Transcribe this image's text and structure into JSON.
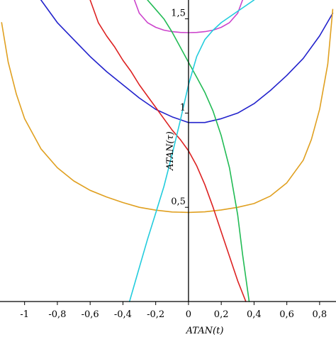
{
  "chart_data": {
    "type": "line",
    "title": "",
    "xlabel": "ATAN(t)",
    "ylabel": "ATAN(τ)",
    "xlim": [
      -1.15,
      0.9
    ],
    "ylim": [
      0.0,
      1.6
    ],
    "grid": false,
    "legend": "none",
    "x_ticks": [
      {
        "value": -1,
        "label": "-1"
      },
      {
        "value": -0.8,
        "label": "-0,8"
      },
      {
        "value": -0.6,
        "label": "-0,6"
      },
      {
        "value": -0.4,
        "label": "-0,4"
      },
      {
        "value": -0.2,
        "label": "-0,2"
      },
      {
        "value": 0,
        "label": "0"
      },
      {
        "value": 0.2,
        "label": "0,2"
      },
      {
        "value": 0.4,
        "label": "0,4"
      },
      {
        "value": 0.6,
        "label": "0,6"
      },
      {
        "value": 0.8,
        "label": "0,8"
      }
    ],
    "y_ticks": [
      {
        "value": 0.5,
        "label": "0,5"
      },
      {
        "value": 1,
        "label": "1"
      },
      {
        "value": 1.5,
        "label": "1,5"
      }
    ],
    "series": [
      {
        "color": "#cc44cc",
        "x": [
          -0.33,
          -0.3,
          -0.25,
          -0.2,
          -0.15,
          -0.1,
          -0.05,
          0,
          0.05,
          0.1,
          0.15,
          0.2,
          0.25,
          0.3,
          0.33
        ],
        "y": [
          1.6,
          1.53,
          1.48,
          1.455,
          1.44,
          1.432,
          1.428,
          1.427,
          1.428,
          1.432,
          1.44,
          1.455,
          1.48,
          1.53,
          1.6
        ]
      },
      {
        "color": "#2222cc",
        "x": [
          -0.9,
          -0.8,
          -0.7,
          -0.6,
          -0.5,
          -0.4,
          -0.3,
          -0.2,
          -0.1,
          0,
          0.1,
          0.2,
          0.3,
          0.4,
          0.5,
          0.6,
          0.7,
          0.8,
          0.88
        ],
        "y": [
          1.6,
          1.48,
          1.39,
          1.3,
          1.22,
          1.15,
          1.08,
          1.02,
          0.98,
          0.95,
          0.95,
          0.97,
          1.0,
          1.05,
          1.12,
          1.2,
          1.29,
          1.41,
          1.53
        ]
      },
      {
        "color": "#e0a020",
        "x": [
          -1.14,
          -1.1,
          -1.05,
          -1.0,
          -0.9,
          -0.8,
          -0.7,
          -0.6,
          -0.5,
          -0.4,
          -0.3,
          -0.2,
          -0.1,
          0,
          0.1,
          0.2,
          0.3,
          0.4,
          0.5,
          0.6,
          0.7,
          0.75,
          0.8,
          0.85,
          0.88
        ],
        "y": [
          1.48,
          1.27,
          1.1,
          0.97,
          0.81,
          0.71,
          0.64,
          0.59,
          0.555,
          0.525,
          0.5,
          0.485,
          0.475,
          0.473,
          0.476,
          0.486,
          0.5,
          0.52,
          0.56,
          0.63,
          0.75,
          0.86,
          1.02,
          1.26,
          1.55
        ]
      },
      {
        "color": "#dd2222",
        "x": [
          -0.6,
          -0.55,
          -0.5,
          -0.45,
          -0.4,
          -0.35,
          -0.3,
          -0.25,
          -0.2,
          -0.15,
          -0.1,
          -0.05,
          0,
          0.05,
          0.1,
          0.15,
          0.2,
          0.25,
          0.3,
          0.35
        ],
        "y": [
          1.6,
          1.48,
          1.41,
          1.35,
          1.28,
          1.22,
          1.15,
          1.09,
          1.03,
          0.97,
          0.91,
          0.86,
          0.8,
          0.72,
          0.62,
          0.5,
          0.37,
          0.24,
          0.11,
          0.0
        ]
      },
      {
        "color": "#22bb55",
        "x": [
          -0.25,
          -0.2,
          -0.15,
          -0.1,
          -0.05,
          0,
          0.05,
          0.1,
          0.15,
          0.2,
          0.25,
          0.3,
          0.33,
          0.37
        ],
        "y": [
          1.6,
          1.55,
          1.5,
          1.43,
          1.35,
          1.27,
          1.19,
          1.11,
          1.01,
          0.88,
          0.71,
          0.46,
          0.25,
          0.0
        ]
      },
      {
        "color": "#22ccdd",
        "x": [
          -0.36,
          -0.3,
          -0.25,
          -0.2,
          -0.15,
          -0.1,
          -0.05,
          0,
          0.05,
          0.1,
          0.15,
          0.2,
          0.25,
          0.3,
          0.35,
          0.4
        ],
        "y": [
          0.0,
          0.18,
          0.33,
          0.47,
          0.61,
          0.78,
          0.96,
          1.15,
          1.3,
          1.39,
          1.44,
          1.48,
          1.51,
          1.54,
          1.57,
          1.6
        ]
      }
    ]
  }
}
